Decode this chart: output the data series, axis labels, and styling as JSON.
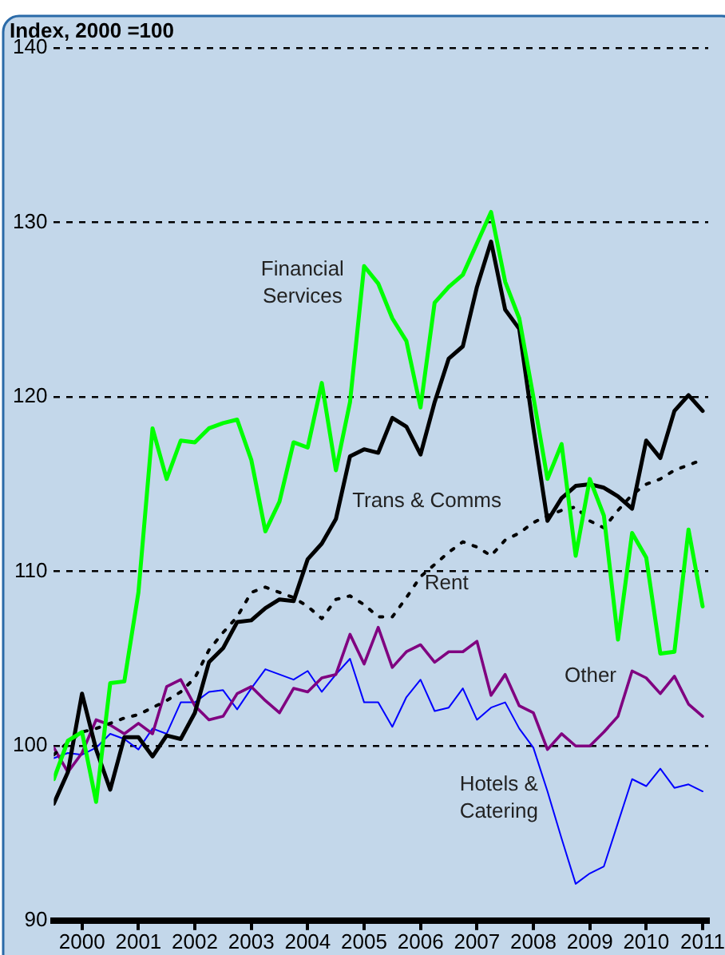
{
  "chart_data": {
    "type": "line",
    "ylabel": "Index, 2000 =100",
    "x": [
      2000,
      2000.25,
      2000.5,
      2000.75,
      2001,
      2001.25,
      2001.5,
      2001.75,
      2002,
      2002.25,
      2002.5,
      2002.75,
      2003,
      2003.25,
      2003.5,
      2003.75,
      2004,
      2004.25,
      2004.5,
      2004.75,
      2005,
      2005.25,
      2005.5,
      2005.75,
      2006,
      2006.25,
      2006.5,
      2006.75,
      2007,
      2007.25,
      2007.5,
      2007.75,
      2008,
      2008.25,
      2008.5,
      2008.75,
      2009,
      2009.25,
      2009.5,
      2009.75,
      2010,
      2010.25,
      2010.5,
      2010.75,
      2011,
      2011.25,
      2011.5
    ],
    "series": [
      {
        "name": "Financial Services",
        "color": "#00ff00",
        "values": [
          98.1,
          100.3,
          100.8,
          96.8,
          103.6,
          103.7,
          108.8,
          118.2,
          115.3,
          117.5,
          117.4,
          118.2,
          118.5,
          118.7,
          116.4,
          112.3,
          114.0,
          117.4,
          117.1,
          120.8,
          115.8,
          119.7,
          127.5,
          126.5,
          124.5,
          123.2,
          119.4,
          125.4,
          126.3,
          127.0,
          128.8,
          130.6,
          126.6,
          124.5,
          120.0,
          115.3,
          117.3,
          110.9,
          115.3,
          113.2,
          106.1,
          112.2,
          110.8,
          105.3,
          105.4,
          112.4,
          108.0
        ]
      },
      {
        "name": "Trans & Comms",
        "color": "#000000",
        "values": [
          96.7,
          98.5,
          103.0,
          99.8,
          97.5,
          100.5,
          100.5,
          99.4,
          100.6,
          100.4,
          101.9,
          104.8,
          105.6,
          107.1,
          107.2,
          107.9,
          108.4,
          108.3,
          110.7,
          111.6,
          113.0,
          116.6,
          117.0,
          116.8,
          118.8,
          118.3,
          116.7,
          119.7,
          122.2,
          122.9,
          126.3,
          128.9,
          125.0,
          123.9,
          118.2,
          112.9,
          114.2,
          114.9,
          115.0,
          114.8,
          114.3,
          113.6,
          117.5,
          116.5,
          119.2,
          120.1,
          119.2
        ]
      },
      {
        "name": "Rent",
        "color": "#000000",
        "line_style": "dotted",
        "values": [
          99.5,
          100.2,
          100.8,
          101.0,
          101.3,
          101.6,
          101.8,
          102.2,
          102.6,
          103.1,
          103.9,
          105.5,
          106.5,
          107.4,
          108.8,
          109.1,
          108.8,
          108.5,
          108.0,
          107.3,
          108.4,
          108.6,
          108.1,
          107.4,
          107.4,
          108.5,
          109.7,
          110.4,
          111.1,
          111.7,
          111.4,
          110.9,
          111.8,
          112.2,
          112.8,
          113.2,
          113.5,
          113.7,
          112.9,
          112.5,
          113.5,
          114.4,
          115.0,
          115.3,
          115.8,
          116.1,
          116.4
        ]
      },
      {
        "name": "Other",
        "color": "#800080",
        "values": [
          99.9,
          98.5,
          99.6,
          101.5,
          101.2,
          100.7,
          101.3,
          100.7,
          103.4,
          103.8,
          102.3,
          101.5,
          101.7,
          103.0,
          103.4,
          102.6,
          101.9,
          103.3,
          103.1,
          103.9,
          104.1,
          106.4,
          104.7,
          106.8,
          104.5,
          105.4,
          105.8,
          104.8,
          105.4,
          105.4,
          106.0,
          102.9,
          104.1,
          102.3,
          101.9,
          99.8,
          100.7,
          100.0,
          100.0,
          100.8,
          101.7,
          104.3,
          103.9,
          103.0,
          104.0,
          102.4,
          101.7
        ]
      },
      {
        "name": "Hotels & Catering",
        "color": "#0000ff",
        "values": [
          99.3,
          99.6,
          99.5,
          99.9,
          100.7,
          100.4,
          99.8,
          101.0,
          100.7,
          102.5,
          102.5,
          103.1,
          103.2,
          102.1,
          103.3,
          104.4,
          104.1,
          103.8,
          104.3,
          103.1,
          104.1,
          105.0,
          102.5,
          102.5,
          101.1,
          102.8,
          103.8,
          102.0,
          102.2,
          103.3,
          101.5,
          102.2,
          102.5,
          101.0,
          99.9,
          97.4,
          94.7,
          92.1,
          92.7,
          93.1,
          95.6,
          98.1,
          97.7,
          98.7,
          97.6,
          97.8,
          97.4
        ]
      }
    ],
    "xlim": [
      2000,
      2011.6
    ],
    "xticks": [
      {
        "value": 2000.5,
        "label": "2000"
      },
      {
        "value": 2001.5,
        "label": "2001"
      },
      {
        "value": 2002.5,
        "label": "2002"
      },
      {
        "value": 2003.5,
        "label": "2003"
      },
      {
        "value": 2004.5,
        "label": "2004"
      },
      {
        "value": 2005.5,
        "label": "2005"
      },
      {
        "value": 2006.5,
        "label": "2006"
      },
      {
        "value": 2007.5,
        "label": "2007"
      },
      {
        "value": 2008.5,
        "label": "2008"
      },
      {
        "value": 2009.5,
        "label": "2009"
      },
      {
        "value": 2010.5,
        "label": "2010"
      },
      {
        "value": 2011.5,
        "label": "2011"
      }
    ],
    "ylim": [
      90,
      140
    ],
    "yticks": [
      90,
      100,
      110,
      120,
      130,
      140
    ],
    "grid": "y",
    "legend": false,
    "marker": "none",
    "line_style": "solid"
  }
}
